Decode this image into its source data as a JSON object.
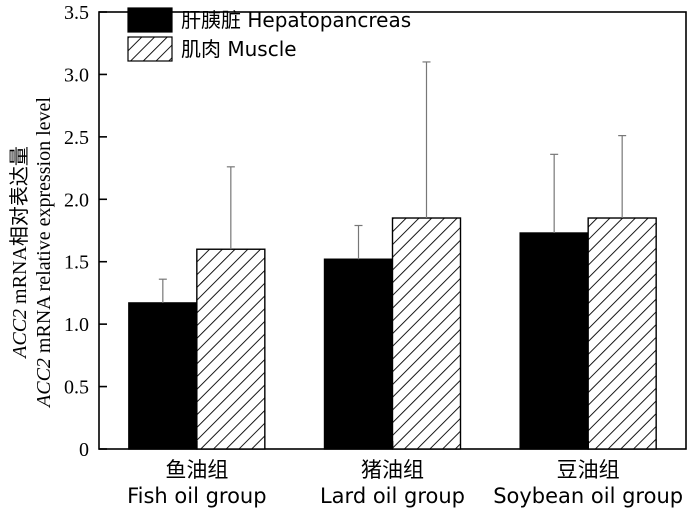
{
  "chart_data": {
    "type": "bar",
    "categories": [
      {
        "zh": "鱼油组",
        "en": "Fish oil group"
      },
      {
        "zh": "猪油组",
        "en": "Lard oil group"
      },
      {
        "zh": "豆油组",
        "en": "Soybean oil group"
      }
    ],
    "series": [
      {
        "name": "肝胰脏 Hepatopancreas",
        "values": [
          1.17,
          1.52,
          1.73
        ],
        "errors": [
          0.19,
          0.27,
          0.63
        ],
        "fill": "solid",
        "color": "#000000"
      },
      {
        "name": "肌肉 Muscle",
        "values": [
          1.6,
          1.85,
          1.85
        ],
        "errors": [
          0.66,
          1.25,
          0.66
        ],
        "fill": "hatched",
        "color": "#ffffff"
      }
    ],
    "ylabel_line1": "ACC2 mRNA相对表达量",
    "ylabel_line2": "ACC2 mRNA relative expression level",
    "ylim": [
      0,
      3.5
    ],
    "yticks": [
      "0",
      "0.5",
      "1.0",
      "1.5",
      "2.0",
      "2.5",
      "3.0",
      "3.5"
    ],
    "legend_position": "top-left",
    "grid": false
  }
}
